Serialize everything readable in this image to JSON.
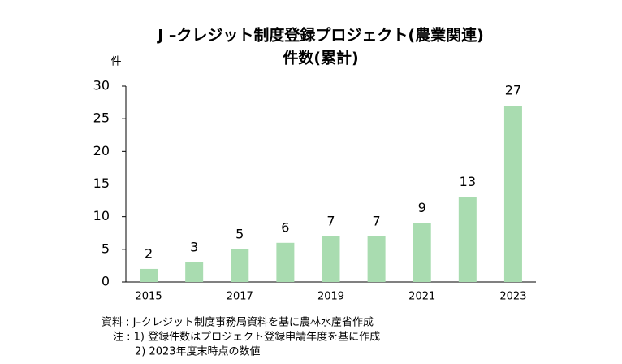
{
  "chart_data": {
    "type": "bar",
    "title": "J –クレジット制度登録プロジェクト(農業関連)",
    "subtitle": "件数(累計)",
    "y_label": "件",
    "categories": [
      "2015",
      null,
      "2017",
      null,
      "2019",
      null,
      "2021",
      null,
      "2023"
    ],
    "values": [
      2,
      3,
      5,
      6,
      7,
      7,
      9,
      13,
      27
    ],
    "color": "#a9dcb0",
    "ylim": [
      0,
      30
    ],
    "yticks": [
      0,
      5,
      10,
      15,
      20,
      25,
      30
    ],
    "grid": false,
    "source": "資料 : J–クレジット制度事務局資料を基に農林水産省作成",
    "notes": [
      "注 : 1) 登録件数はプロジェクト登録申請年度を基に作成",
      "2) 2023年度末時点の数値"
    ]
  }
}
